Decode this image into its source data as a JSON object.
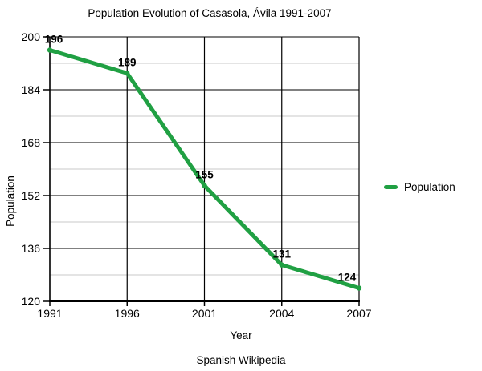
{
  "title": "Population Evolution of Casasola, Ávila 1991-2007",
  "axes": {
    "x_title": "Year",
    "y_title": "Population"
  },
  "caption": "Spanish Wikipedia",
  "legend": {
    "label": "Population"
  },
  "colors": {
    "line": "#20a043",
    "marker": "#20a043",
    "major_grid": "#000000",
    "minor_grid": "#c9c9c9",
    "axis": "#000000",
    "text": "#000000",
    "background": "#ffffff"
  },
  "chart_data": {
    "type": "line",
    "categories": [
      "1991",
      "1996",
      "2001",
      "2004",
      "2007"
    ],
    "series": [
      {
        "name": "Population",
        "values": [
          196,
          189,
          155,
          131,
          124
        ]
      }
    ],
    "data_labels": [
      "196",
      "189",
      "155",
      "131",
      "124"
    ],
    "title": "Population Evolution of Casasola, Ávila 1991-2007",
    "xlabel": "Year",
    "ylabel": "Population",
    "ylim": [
      120,
      200
    ],
    "yticks": [
      120,
      136,
      152,
      168,
      184,
      200
    ],
    "minor_yticks": [
      128,
      144,
      160,
      176,
      192
    ],
    "grid": true,
    "legend_position": "right",
    "subtitle": "Spanish Wikipedia"
  }
}
